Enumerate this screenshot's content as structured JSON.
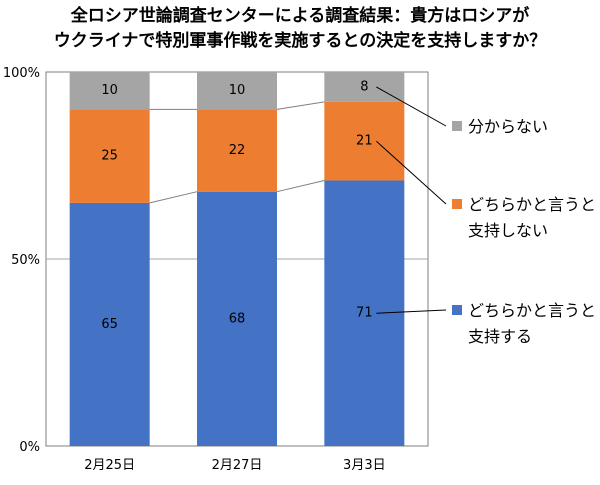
{
  "title_line1": "全ロシア世論調査センターによる調査結果：貴方はロシアが",
  "title_line2": "ウクライナで特別軍事作戦を実施するとの決定を支持しますか？",
  "chart_data": {
    "type": "bar",
    "stacked": true,
    "categories": [
      "2月25日",
      "2月27日",
      "3月3日"
    ],
    "ylim": [
      0,
      100
    ],
    "yticks": [
      "0%",
      "50%",
      "100%"
    ],
    "series": [
      {
        "name": "どちらかと言うと支持する",
        "legend_lines": [
          "どちらかと言うと",
          "支持する"
        ],
        "color": "#4472c4",
        "values": [
          65,
          68,
          71
        ]
      },
      {
        "name": "どちらかと言うと支持しない",
        "legend_lines": [
          "どちらかと言うと",
          "支持しない"
        ],
        "color": "#ed7d31",
        "values": [
          25,
          22,
          21
        ]
      },
      {
        "name": "分からない",
        "legend_lines": [
          "分からない"
        ],
        "color": "#a5a5a5",
        "values": [
          10,
          10,
          8
        ]
      }
    ],
    "grid": true,
    "legend_position": "right"
  }
}
